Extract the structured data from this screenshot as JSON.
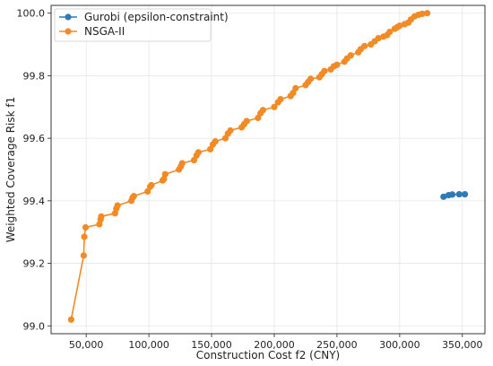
{
  "chart_data": {
    "type": "line",
    "title": "",
    "xlabel": "Construction Cost f2 (CNY)",
    "ylabel": "Weighted Coverage Risk f1",
    "xlim": [
      22000,
      368000
    ],
    "ylim": [
      98.975,
      100.025
    ],
    "x_ticks": [
      50000,
      100000,
      150000,
      200000,
      250000,
      300000,
      350000
    ],
    "x_tick_labels": [
      "50,000",
      "100,000",
      "150,000",
      "200,000",
      "250,000",
      "300,000",
      "350,000"
    ],
    "y_ticks": [
      99.0,
      99.2,
      99.4,
      99.6,
      99.8,
      100.0
    ],
    "y_tick_labels": [
      "99.0",
      "99.2",
      "99.4",
      "99.6",
      "99.8",
      "100.0"
    ],
    "grid": true,
    "legend_position": "top-left",
    "series": [
      {
        "name": "Gurobi (epsilon-constraint)",
        "color": "#2f7bb4",
        "marker": "circle",
        "x": [
          335000,
          339000,
          342000,
          347500,
          352000
        ],
        "y": [
          99.413,
          99.418,
          99.42,
          99.421,
          99.421
        ]
      },
      {
        "name": "NSGA-II",
        "color": "#f28a25",
        "marker": "circle",
        "x": [
          38000,
          48000,
          48500,
          49500,
          60500,
          61500,
          62000,
          73000,
          74000,
          75000,
          86000,
          87000,
          88000,
          99000,
          101000,
          102000,
          111000,
          112000,
          113000,
          124000,
          125500,
          126500,
          136000,
          138000,
          139500,
          149000,
          151000,
          153000,
          161000,
          163000,
          165000,
          174000,
          176000,
          178000,
          187000,
          189000,
          191000,
          200000,
          203000,
          205000,
          213000,
          215000,
          217000,
          225000,
          227000,
          229000,
          236000,
          238000,
          240000,
          245000,
          247500,
          250000,
          256000,
          258000,
          261000,
          267000,
          269000,
          272000,
          277000,
          280000,
          283000,
          287000,
          290000,
          292000,
          296000,
          298000,
          300000,
          304000,
          307000,
          309000,
          312000,
          315000,
          318000,
          322000
        ],
        "y": [
          99.02,
          99.225,
          99.285,
          99.315,
          99.325,
          99.34,
          99.35,
          99.36,
          99.375,
          99.385,
          99.4,
          99.41,
          99.415,
          99.43,
          99.445,
          99.45,
          99.465,
          99.47,
          99.485,
          99.5,
          99.51,
          99.52,
          99.53,
          99.545,
          99.555,
          99.565,
          99.58,
          99.59,
          99.6,
          99.615,
          99.625,
          99.635,
          99.645,
          99.655,
          99.665,
          99.68,
          99.69,
          99.7,
          99.715,
          99.725,
          99.735,
          99.745,
          99.76,
          99.77,
          99.78,
          99.79,
          99.795,
          99.805,
          99.815,
          99.82,
          99.83,
          99.835,
          99.845,
          99.855,
          99.865,
          99.875,
          99.885,
          99.895,
          99.9,
          99.91,
          99.92,
          99.925,
          99.93,
          99.94,
          99.95,
          99.955,
          99.96,
          99.965,
          99.97,
          99.98,
          99.99,
          99.995,
          99.998,
          100.0
        ]
      }
    ]
  }
}
